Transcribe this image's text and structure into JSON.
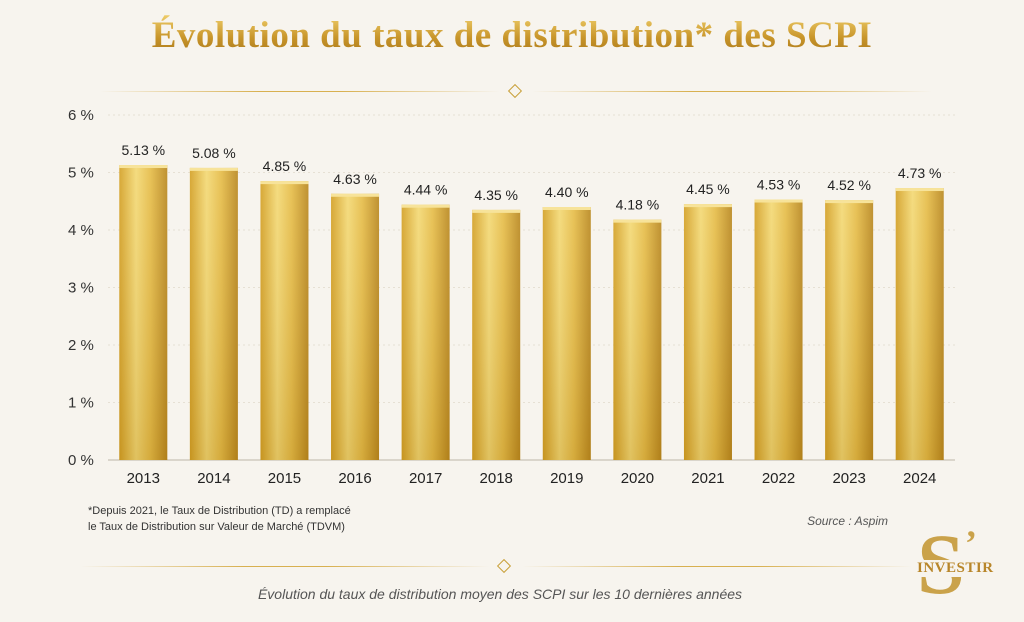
{
  "title": "Évolution du taux de distribution* des SCPI",
  "footnote_line1": "*Depuis 2021, le Taux de Distribution (TD) a remplacé",
  "footnote_line2": "le Taux de Distribution sur Valeur de Marché (TDVM)",
  "source": "Source : Aspim",
  "caption": "Évolution du taux de distribution moyen des SCPI sur les 10 dernières années",
  "logo": {
    "letter": "S",
    "apostrophe": "’",
    "word": "INVESTIR"
  },
  "colors": {
    "gold_light": "#f3d872",
    "gold_mid": "#d9a92c",
    "gold_dark": "#b8861c",
    "background": "#f7f4ee"
  },
  "chart_data": {
    "type": "bar",
    "categories": [
      "2013",
      "2014",
      "2015",
      "2016",
      "2017",
      "2018",
      "2019",
      "2020",
      "2021",
      "2022",
      "2023",
      "2024"
    ],
    "values": [
      5.13,
      5.08,
      4.85,
      4.63,
      4.44,
      4.35,
      4.4,
      4.18,
      4.45,
      4.53,
      4.52,
      4.73
    ],
    "value_labels": [
      "5.13 %",
      "5.08 %",
      "4.85 %",
      "4.63 %",
      "4.44 %",
      "4.35 %",
      "4.40 %",
      "4.18 %",
      "4.45 %",
      "4.53 %",
      "4.52 %",
      "4.73 %"
    ],
    "y_ticks": [
      0,
      1,
      2,
      3,
      4,
      5,
      6
    ],
    "y_tick_labels": [
      "0 %",
      "1 %",
      "2 %",
      "3 %",
      "4 %",
      "5 %",
      "6 %"
    ],
    "ylim": [
      0,
      6
    ],
    "grid": true,
    "xlabel": "",
    "ylabel": ""
  }
}
